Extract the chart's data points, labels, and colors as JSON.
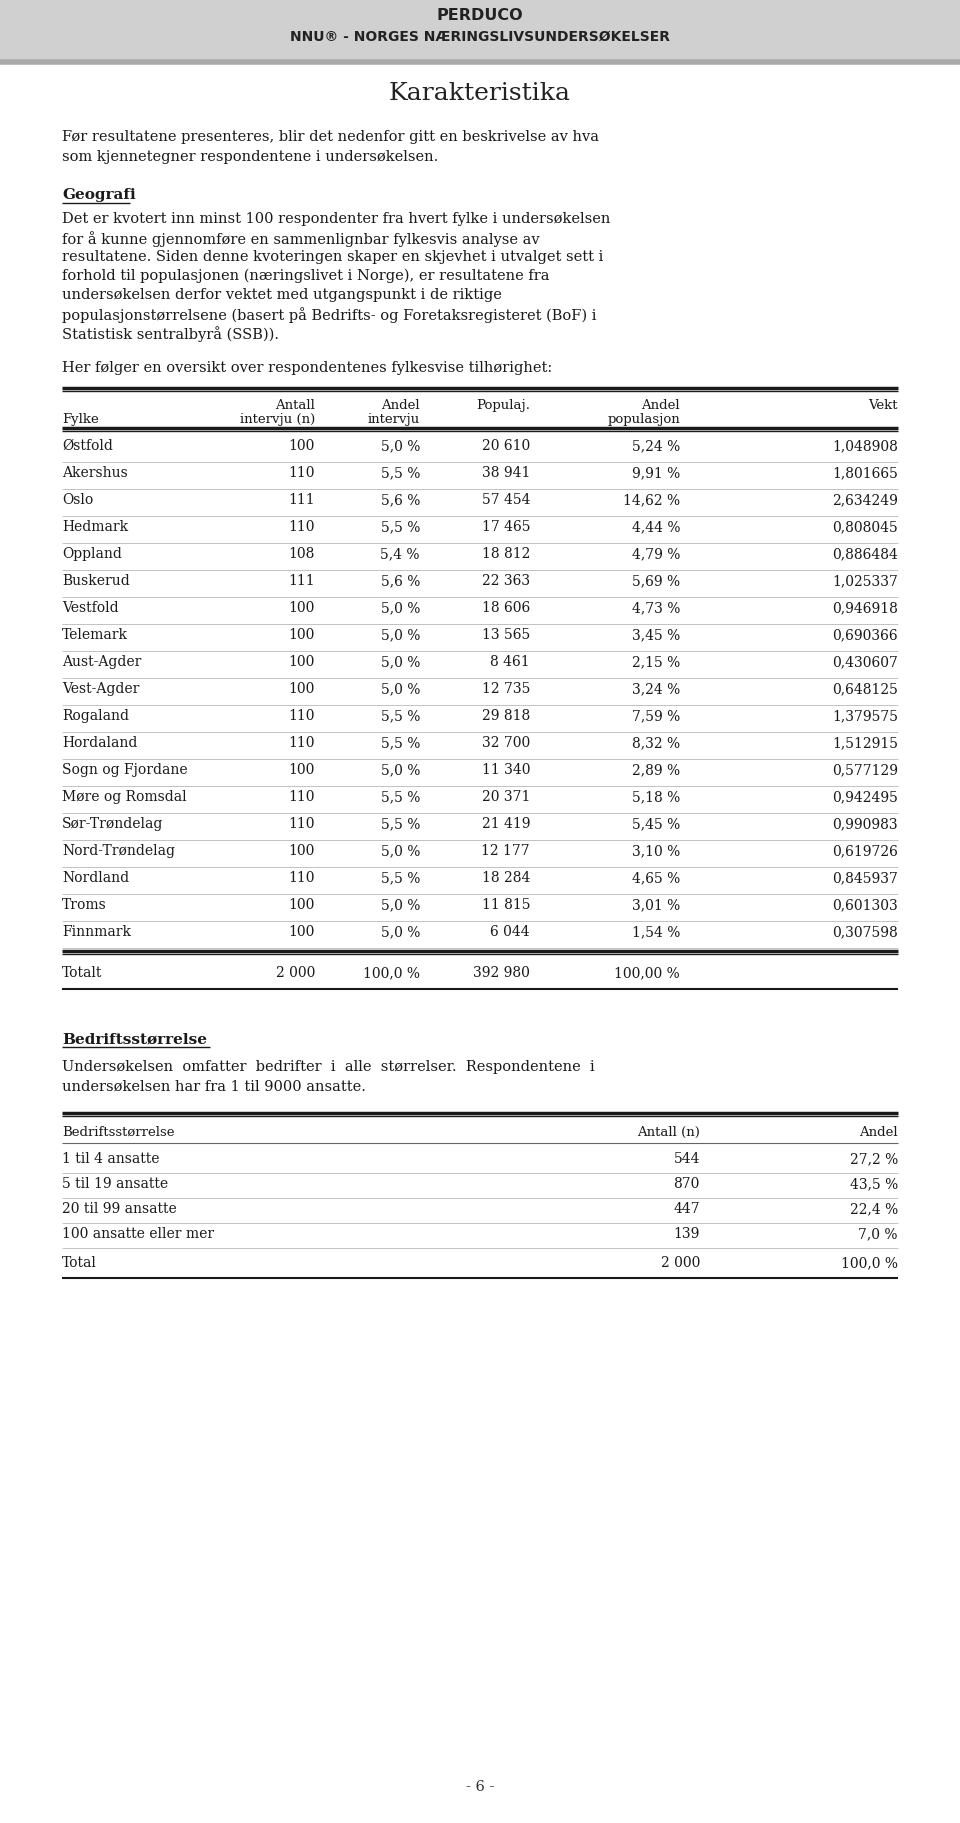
{
  "header_line1": "PERDUCO",
  "header_line2": "NNU® - NORGES NÆRINGSLIVSUNDERSØKELSER",
  "page_title": "Karakteristika",
  "intro_line1": "Før resultatene presenteres, blir det nedenfor gitt en beskrivelse av hva",
  "intro_line2": "som kjennetegner respondentene i undersøkelsen.",
  "geografi_heading": "Geografi",
  "geo_lines": [
    "Det er kvotert inn minst 100 respondenter fra hvert fylke i undersøkelsen",
    "for å kunne gjennomføre en sammenlignbar fylkesvis analyse av",
    "resultatene. Siden denne kvoteringen skaper en skjevhet i utvalget sett i",
    "forhold til populasjonen (næringslivet i Norge), er resultatene fra",
    "undersøkelsen derfor vektet med utgangspunkt i de riktige",
    "populasjonstørrelsene (basert på Bedrifts- og Foretaksregisteret (BoF) i",
    "Statistisk sentralbyrå (SSB))."
  ],
  "table1_intro": "Her følger en oversikt over respondentenes fylkesvise tilhørighet:",
  "table1_rows": [
    [
      "Østfold",
      "100",
      "5,0 %",
      "20 610",
      "5,24 %",
      "1,048908"
    ],
    [
      "Akershus",
      "110",
      "5,5 %",
      "38 941",
      "9,91 %",
      "1,801665"
    ],
    [
      "Oslo",
      "111",
      "5,6 %",
      "57 454",
      "14,62 %",
      "2,634249"
    ],
    [
      "Hedmark",
      "110",
      "5,5 %",
      "17 465",
      "4,44 %",
      "0,808045"
    ],
    [
      "Oppland",
      "108",
      "5,4 %",
      "18 812",
      "4,79 %",
      "0,886484"
    ],
    [
      "Buskerud",
      "111",
      "5,6 %",
      "22 363",
      "5,69 %",
      "1,025337"
    ],
    [
      "Vestfold",
      "100",
      "5,0 %",
      "18 606",
      "4,73 %",
      "0,946918"
    ],
    [
      "Telemark",
      "100",
      "5,0 %",
      "13 565",
      "3,45 %",
      "0,690366"
    ],
    [
      "Aust-Agder",
      "100",
      "5,0 %",
      "8 461",
      "2,15 %",
      "0,430607"
    ],
    [
      "Vest-Agder",
      "100",
      "5,0 %",
      "12 735",
      "3,24 %",
      "0,648125"
    ],
    [
      "Rogaland",
      "110",
      "5,5 %",
      "29 818",
      "7,59 %",
      "1,379575"
    ],
    [
      "Hordaland",
      "110",
      "5,5 %",
      "32 700",
      "8,32 %",
      "1,512915"
    ],
    [
      "Sogn og Fjordane",
      "100",
      "5,0 %",
      "11 340",
      "2,89 %",
      "0,577129"
    ],
    [
      "Møre og Romsdal",
      "110",
      "5,5 %",
      "20 371",
      "5,18 %",
      "0,942495"
    ],
    [
      "Sør-Trøndelag",
      "110",
      "5,5 %",
      "21 419",
      "5,45 %",
      "0,990983"
    ],
    [
      "Nord-Trøndelag",
      "100",
      "5,0 %",
      "12 177",
      "3,10 %",
      "0,619726"
    ],
    [
      "Nordland",
      "110",
      "5,5 %",
      "18 284",
      "4,65 %",
      "0,845937"
    ],
    [
      "Troms",
      "100",
      "5,0 %",
      "11 815",
      "3,01 %",
      "0,601303"
    ],
    [
      "Finnmark",
      "100",
      "5,0 %",
      "6 044",
      "1,54 %",
      "0,307598"
    ]
  ],
  "table1_total": [
    "Totalt",
    "2 000",
    "100,0 %",
    "392 980",
    "100,00 %",
    ""
  ],
  "bedrift_heading": "Bedriftsstørrelse",
  "bedrift_line1": "Undersøkelsen  omfatter  bedrifter  i  alle  størrelser.  Respondentene  i",
  "bedrift_line2": "undersøkelsen har fra 1 til 9000 ansatte.",
  "table2_rows": [
    [
      "1 til 4 ansatte",
      "544",
      "27,2 %"
    ],
    [
      "5 til 19 ansatte",
      "870",
      "43,5 %"
    ],
    [
      "20 til 99 ansatte",
      "447",
      "22,4 %"
    ],
    [
      "100 ansatte eller mer",
      "139",
      "7,0 %"
    ]
  ],
  "table2_total": [
    "Total",
    "2 000",
    "100,0 %"
  ],
  "page_number": "- 6 -",
  "bg_color": "#ffffff",
  "text_color": "#1a1a1a",
  "line_color_thick": "#1a1a1a",
  "line_color_thin": "#999999",
  "header_bar_color": "#d0d0d0"
}
